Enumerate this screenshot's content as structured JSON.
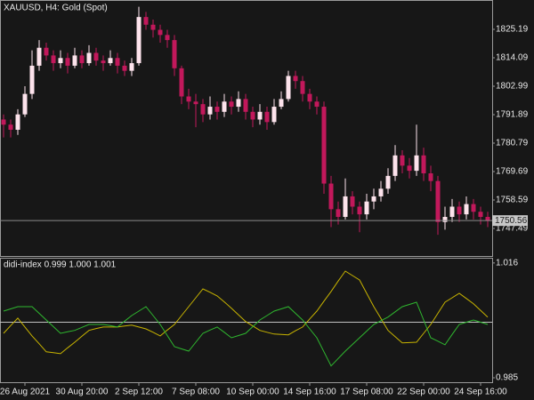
{
  "chart_data": [
    {
      "type": "candlestick",
      "title": "XAUUSD, H4:  Gold (Spot)",
      "categories": [
        null,
        null,
        null,
        "26 Aug 2021",
        null,
        null,
        null,
        null,
        null,
        null,
        null,
        "30 Aug 20:00",
        null,
        null,
        null,
        null,
        null,
        null,
        null,
        "2 Sep 12:00",
        null,
        null,
        null,
        null,
        null,
        null,
        null,
        "7 Sep 08:00",
        null,
        null,
        null,
        null,
        null,
        null,
        null,
        "10 Sep 00:00",
        null,
        null,
        null,
        null,
        null,
        null,
        null,
        "14 Sep 16:00",
        null,
        null,
        null,
        null,
        null,
        null,
        null,
        "17 Sep 08:00",
        null,
        null,
        null,
        null,
        null,
        null,
        null,
        "22 Sep 00:00",
        null,
        null,
        null,
        null,
        null,
        null,
        null,
        "24 Sep 16:00",
        null
      ],
      "open": [
        1790,
        1788,
        1786,
        1792,
        1800,
        1811,
        1818,
        1815,
        1812,
        1814,
        1811,
        1815,
        1812,
        1816,
        1813,
        1812,
        1814,
        1811,
        1809,
        1812,
        1830,
        1827,
        1825,
        1823,
        1821,
        1810,
        1799,
        1797,
        1796,
        1792,
        1795,
        1793,
        1797,
        1795,
        1798,
        1793,
        1790,
        1793,
        1789,
        1795,
        1798,
        1807,
        1805,
        1800,
        1797,
        1795,
        1765,
        1755,
        1752,
        1760,
        1756,
        1753,
        1758,
        1760,
        1763,
        1768,
        1776,
        1772,
        1770,
        1776,
        1769,
        1766,
        1750,
        1752,
        1756,
        1753,
        1757,
        1754,
        1752
      ],
      "high": [
        1792,
        1790,
        1794,
        1803,
        1817,
        1821,
        1820,
        1817,
        1817,
        1816,
        1818,
        1817,
        1819,
        1818,
        1815,
        1817,
        1816,
        1813,
        1814,
        1834,
        1832,
        1829,
        1827,
        1825,
        1823,
        1811,
        1802,
        1800,
        1798,
        1799,
        1797,
        1800,
        1799,
        1801,
        1800,
        1795,
        1796,
        1795,
        1798,
        1801,
        1809,
        1809,
        1807,
        1802,
        1799,
        1797,
        1768,
        1758,
        1767,
        1762,
        1758,
        1761,
        1763,
        1766,
        1771,
        1780,
        1778,
        1775,
        1788,
        1779,
        1772,
        1768,
        1756,
        1759,
        1758,
        1760,
        1759,
        1756,
        1754
      ],
      "low": [
        1783,
        1783,
        1784,
        1791,
        1798,
        1809,
        1813,
        1809,
        1810,
        1808,
        1810,
        1810,
        1811,
        1811,
        1809,
        1811,
        1808,
        1807,
        1807,
        1811,
        1825,
        1822,
        1820,
        1818,
        1807,
        1796,
        1794,
        1787,
        1789,
        1790,
        1790,
        1791,
        1792,
        1793,
        1790,
        1787,
        1788,
        1786,
        1788,
        1794,
        1797,
        1802,
        1797,
        1794,
        1792,
        1761,
        1748,
        1749,
        1751,
        1753,
        1746,
        1751,
        1755,
        1758,
        1761,
        1766,
        1769,
        1767,
        1768,
        1766,
        1762,
        1745,
        1747,
        1750,
        1750,
        1751,
        1751,
        1749,
        1748
      ],
      "close": [
        1788,
        1786,
        1792,
        1800,
        1811,
        1818,
        1815,
        1812,
        1814,
        1811,
        1815,
        1812,
        1816,
        1813,
        1812,
        1814,
        1811,
        1809,
        1812,
        1830,
        1827,
        1825,
        1823,
        1821,
        1810,
        1799,
        1797,
        1796,
        1792,
        1795,
        1793,
        1797,
        1795,
        1798,
        1793,
        1790,
        1793,
        1789,
        1795,
        1798,
        1807,
        1805,
        1800,
        1797,
        1795,
        1765,
        1755,
        1752,
        1760,
        1756,
        1753,
        1758,
        1760,
        1763,
        1768,
        1776,
        1772,
        1770,
        1776,
        1769,
        1766,
        1750,
        1752,
        1756,
        1753,
        1757,
        1754,
        1752,
        1750.56
      ],
      "up_color": "#fde3ec",
      "down_color": "#c2185b",
      "current_price": 1750.56,
      "ylim": [
        1736.74,
        1836.64
      ],
      "yticks": [
        1825.19,
        1814.09,
        1802.99,
        1791.89,
        1780.79,
        1769.69,
        1758.59,
        1747.49
      ]
    },
    {
      "type": "line",
      "title": "didi-index 0.999 1.000 1.001",
      "level": 1,
      "ylim": [
        0.9838,
        1.0174
      ],
      "yticks": [
        1.016,
        0.985
      ],
      "series": [
        {
          "color": "#c8b400",
          "values": [
            0.997,
            0.9991,
            1.0011,
            0.9987,
            0.9963,
            0.9942,
            0.992,
            0.9918,
            0.9915,
            0.9931,
            0.9946,
            0.9962,
            0.9978,
            0.9983,
            0.9987,
            0.9987,
            0.9987,
            0.999,
            0.9992,
            0.9987,
            0.9982,
            0.9973,
            0.9963,
            0.9979,
            0.9994,
            1.0018,
            1.0042,
            1.0066,
            1.009,
            1.0081,
            1.0071,
            1.0055,
            1.0038,
            1.002,
            1.0002,
            0.999,
            0.9978,
            0.9973,
            0.9968,
            0.9967,
            0.9966,
            0.9977,
            0.9987,
            1.0009,
            1.003,
            1.0057,
            1.0083,
            1.0111,
            1.0138,
            1.0126,
            1.0114,
            1.0078,
            1.0042,
            1.001,
            0.9978,
            0.9961,
            0.9944,
            0.9945,
            0.9946,
            0.997,
            0.9994,
            1.0024,
            1.0054,
            1.0066,
            1.0078,
            1.0064,
            1.005,
            1.0032,
            1.0014
          ]
        },
        {
          "color": "#2fb82f",
          "values": [
            1.003,
            1.0036,
            1.0042,
            1.0042,
            1.0042,
            1.0024,
            1.0006,
            0.9988,
            0.997,
            0.9974,
            0.9978,
            0.9986,
            0.9994,
            0.9994,
            0.9994,
            0.9991,
            0.9987,
            1.0003,
            1.0018,
            1.003,
            1.0042,
            1.0018,
            0.9994,
            0.9964,
            0.9934,
            0.9928,
            0.9922,
            0.9946,
            0.997,
            0.9979,
            0.9987,
            0.9973,
            0.9958,
            0.9964,
            0.997,
            0.9988,
            1.0006,
            1.0018,
            1.003,
            1.0036,
            1.0042,
            1.0024,
            1.0006,
            0.9982,
            0.9958,
            0.992,
            0.9882,
            0.9902,
            0.9922,
            0.994,
            0.9958,
            0.9976,
            0.9994,
            1.0004,
            1.0014,
            1.0028,
            1.0042,
            1.0048,
            1.0054,
            1.0006,
            0.9958,
            0.9949,
            0.9939,
            0.9967,
            0.9994,
            1.0,
            1.0006,
            1.0,
            0.9994
          ]
        }
      ]
    }
  ]
}
